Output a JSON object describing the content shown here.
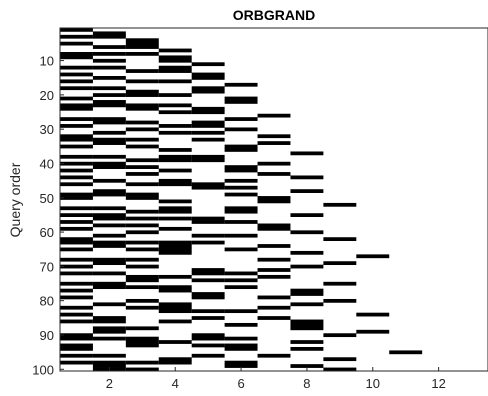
{
  "chart_data": {
    "type": "heatmap",
    "title": "ORBGRAND",
    "xlabel": "",
    "ylabel": "Query order",
    "xlim": [
      0.5,
      13.5
    ],
    "ylim": [
      100,
      0
    ],
    "xticks": [
      2,
      4,
      6,
      8,
      10,
      12
    ],
    "yticks": [
      10,
      20,
      30,
      40,
      50,
      60,
      70,
      80,
      90,
      100
    ],
    "grid": false,
    "colormap": {
      "0": "#ffffff",
      "1": "#000000"
    },
    "columns": 13,
    "rows": 100,
    "values_encoding": "each row string lists positions 1..13; '1' = black cell (bit flipped), '0' = white",
    "rows_bits": [
      "1000000000000",
      "0100000000000",
      "1100000000000",
      "0010000000000",
      "1010000000000",
      "0110000000000",
      "0001000000000",
      "1110000000000",
      "1001000000000",
      "0101000000000",
      "0000100000000",
      "1101000000000",
      "0011000000000",
      "1000100000000",
      "0100100000000",
      "1011000000000",
      "0000010000000",
      "1100100000000",
      "0010100000000",
      "0111000000000",
      "1000010000000",
      "0100010000000",
      "1111000000000",
      "1010100000000",
      "0001100000000",
      "0000001000000",
      "1100010000000",
      "0110100000000",
      "1001100000000",
      "0010010000000",
      "0101100000000",
      "1000001000000",
      "1110100000000",
      "0100001000000",
      "1010010000000",
      "0001010000000",
      "0000000100000",
      "1101100000000",
      "0011100000000",
      "1100001000000",
      "0110010000000",
      "1001010000000",
      "0010001000000",
      "1000000100000",
      "0101010000000",
      "1011100000000",
      "0000110000000",
      "0100000100000",
      "1110010000000",
      "1010001000000",
      "0001001000000",
      "0000000010000",
      "1101010000000",
      "0011010000000",
      "1100000100000",
      "0111100000000",
      "1000110000000",
      "0110001000000",
      "1001001000000",
      "0010000100000",
      "0100110000000",
      "1000000010000",
      "1111100000000",
      "0101001000000",
      "1011010000000",
      "0001000100000",
      "0000000001000",
      "1110001000000",
      "0100000010000",
      "1010000100000",
      "0000101000000",
      "1100110000000",
      "0011001000000",
      "0010110000000",
      "1100000010000",
      "0111010000000",
      "1001000100000",
      "0000100100000",
      "1000101000000",
      "0010000010000",
      "0101000100000",
      "1011001000000",
      "0001110000000",
      "1000000001000",
      "0100101000000",
      "1101000100000",
      "0000010100000",
      "0110000100000",
      "0100000001000",
      "1000100010000",
      "1110110000000",
      "0011000100000",
      "1010110000000",
      "1000010100000",
      "0000000000100",
      "1100101000000",
      "0001000010000",
      "1111010000000",
      "0100010100000",
      "0110000010000"
    ]
  }
}
